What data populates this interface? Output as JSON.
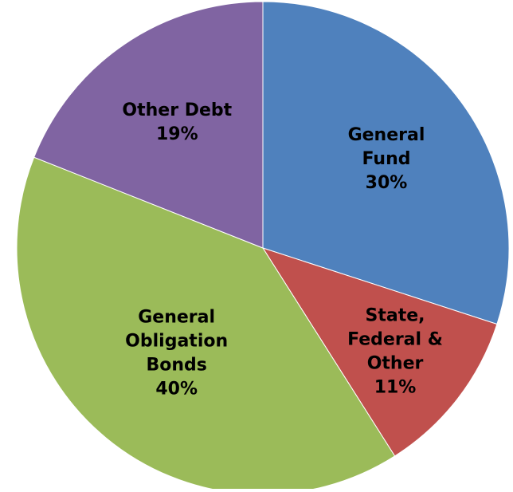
{
  "chart_data": {
    "type": "pie",
    "title": "",
    "start_angle_deg": 0,
    "direction": "clockwise",
    "slices": [
      {
        "label_lines": [
          "General",
          "Fund"
        ],
        "value": 30,
        "value_label": "30%",
        "color": "#4F81BD"
      },
      {
        "label_lines": [
          "State,",
          "Federal &",
          "Other"
        ],
        "value": 11,
        "value_label": "11%",
        "color": "#C0504D"
      },
      {
        "label_lines": [
          "General",
          "Obligation",
          "Bonds"
        ],
        "value": 40,
        "value_label": "40%",
        "color": "#9BBB59"
      },
      {
        "label_lines": [
          "Other Debt"
        ],
        "value": 19,
        "value_label": "19%",
        "color": "#8064A2"
      }
    ]
  }
}
